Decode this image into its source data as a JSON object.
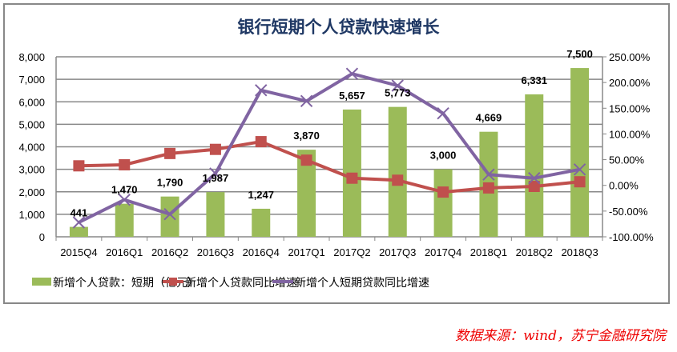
{
  "chart_data": {
    "type": "bar+line",
    "title": "银行短期个人贷款快速增长",
    "categories": [
      "2015Q4",
      "2016Q1",
      "2016Q2",
      "2016Q3",
      "2016Q4",
      "2017Q1",
      "2017Q2",
      "2017Q3",
      "2017Q4",
      "2018Q1",
      "2018Q2",
      "2018Q3"
    ],
    "series": [
      {
        "name": "新增个人贷款：短期（亿元）",
        "type": "bar",
        "axis": "left",
        "color": "#9bbb59",
        "values": [
          441,
          1470,
          1790,
          1987,
          1247,
          3870,
          5657,
          5773,
          3000,
          4669,
          6331,
          7500
        ],
        "labels": [
          "441",
          "1,470",
          "1,790",
          "1,987",
          "1,247",
          "3,870",
          "5,657",
          "5,773",
          "3,000",
          "4,669",
          "6,331",
          "7,500"
        ]
      },
      {
        "name": "新增个人贷款同比增速",
        "type": "line",
        "axis": "right",
        "color": "#c0504d",
        "marker": "square",
        "values": [
          38,
          40,
          62,
          70,
          85,
          49,
          14,
          10,
          -13,
          -5,
          -2,
          7
        ]
      },
      {
        "name": "新增个人短期贷款同比增速",
        "type": "line",
        "axis": "right",
        "color": "#8064a2",
        "marker": "x",
        "values": [
          -72,
          -28,
          -56,
          23,
          185,
          164,
          217,
          194,
          140,
          21,
          14,
          31
        ]
      }
    ],
    "y_left": {
      "range": [
        0,
        8000
      ],
      "ticks": [
        "0",
        "1,000",
        "2,000",
        "3,000",
        "4,000",
        "5,000",
        "6,000",
        "7,000",
        "8,000"
      ]
    },
    "y_right": {
      "range": [
        -100,
        250
      ],
      "ticks": [
        "-100.00%",
        "-50.00%",
        "0.00%",
        "50.00%",
        "100.00%",
        "150.00%",
        "200.00%",
        "250.00%"
      ]
    },
    "grid": true,
    "legend": "bottom"
  },
  "source": "数据来源：wind，苏宁金融研究院"
}
